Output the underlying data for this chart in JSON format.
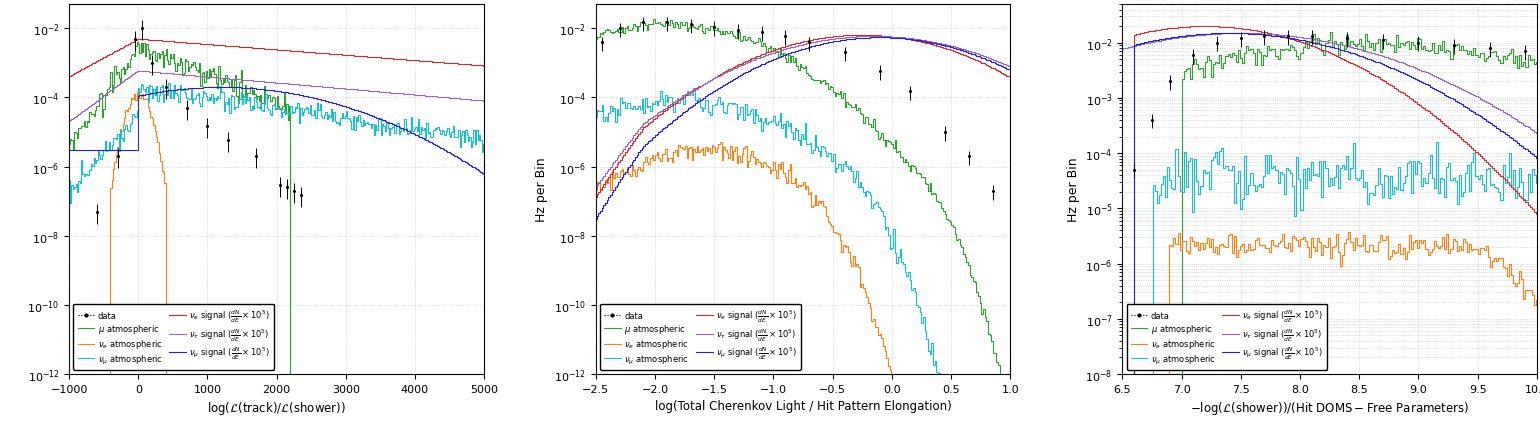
{
  "colors": {
    "data": "black",
    "mu_atm": "#2ca02c",
    "nue_atm": "#ff7f0e",
    "numu_atm": "#17becf",
    "nue_sig": "#d62728",
    "nutau_sig": "#9467bd",
    "numu_sig": "#1f1fdd"
  },
  "plot1": {
    "xlabel": "$\\log(\\mathcal{L}(\\mathrm{track})/\\mathcal{L}(\\mathrm{shower}))$",
    "xlim": [
      -1000,
      5000
    ],
    "ylim_lo": 1e-12,
    "ylim_hi": 0.05,
    "xticks": [
      -1000,
      0,
      1000,
      2000,
      3000,
      4000,
      5000
    ],
    "nbins": 300
  },
  "plot2": {
    "xlabel": "log(Total Cherenkov Light / Hit Pattern Elongation)",
    "xlim_lo": -2.5,
    "xlim_hi": 1.0,
    "ylim_lo": 1e-12,
    "ylim_hi": 0.05,
    "xticks": [
      -2.5,
      -2.0,
      -1.5,
      -1.0,
      -0.5,
      0.0,
      0.5,
      1.0
    ],
    "nbins": 250
  },
  "plot3": {
    "xlabel": "$-\\log(\\mathcal{L}(\\mathrm{shower}))/(\\mathrm{Hit\\ DOMS - Free\\ Parameters})$",
    "xlim_lo": 6.5,
    "xlim_hi": 10.0,
    "ylim_lo": 1e-08,
    "ylim_hi": 0.05,
    "xticks": [
      6.5,
      7.0,
      7.5,
      8.0,
      8.5,
      9.0,
      9.5,
      10.0
    ],
    "nbins": 200
  },
  "ylabel": "Hz per Bin",
  "lw": 0.8,
  "legend_fontsize": 6.0,
  "legend_ncol": 2
}
